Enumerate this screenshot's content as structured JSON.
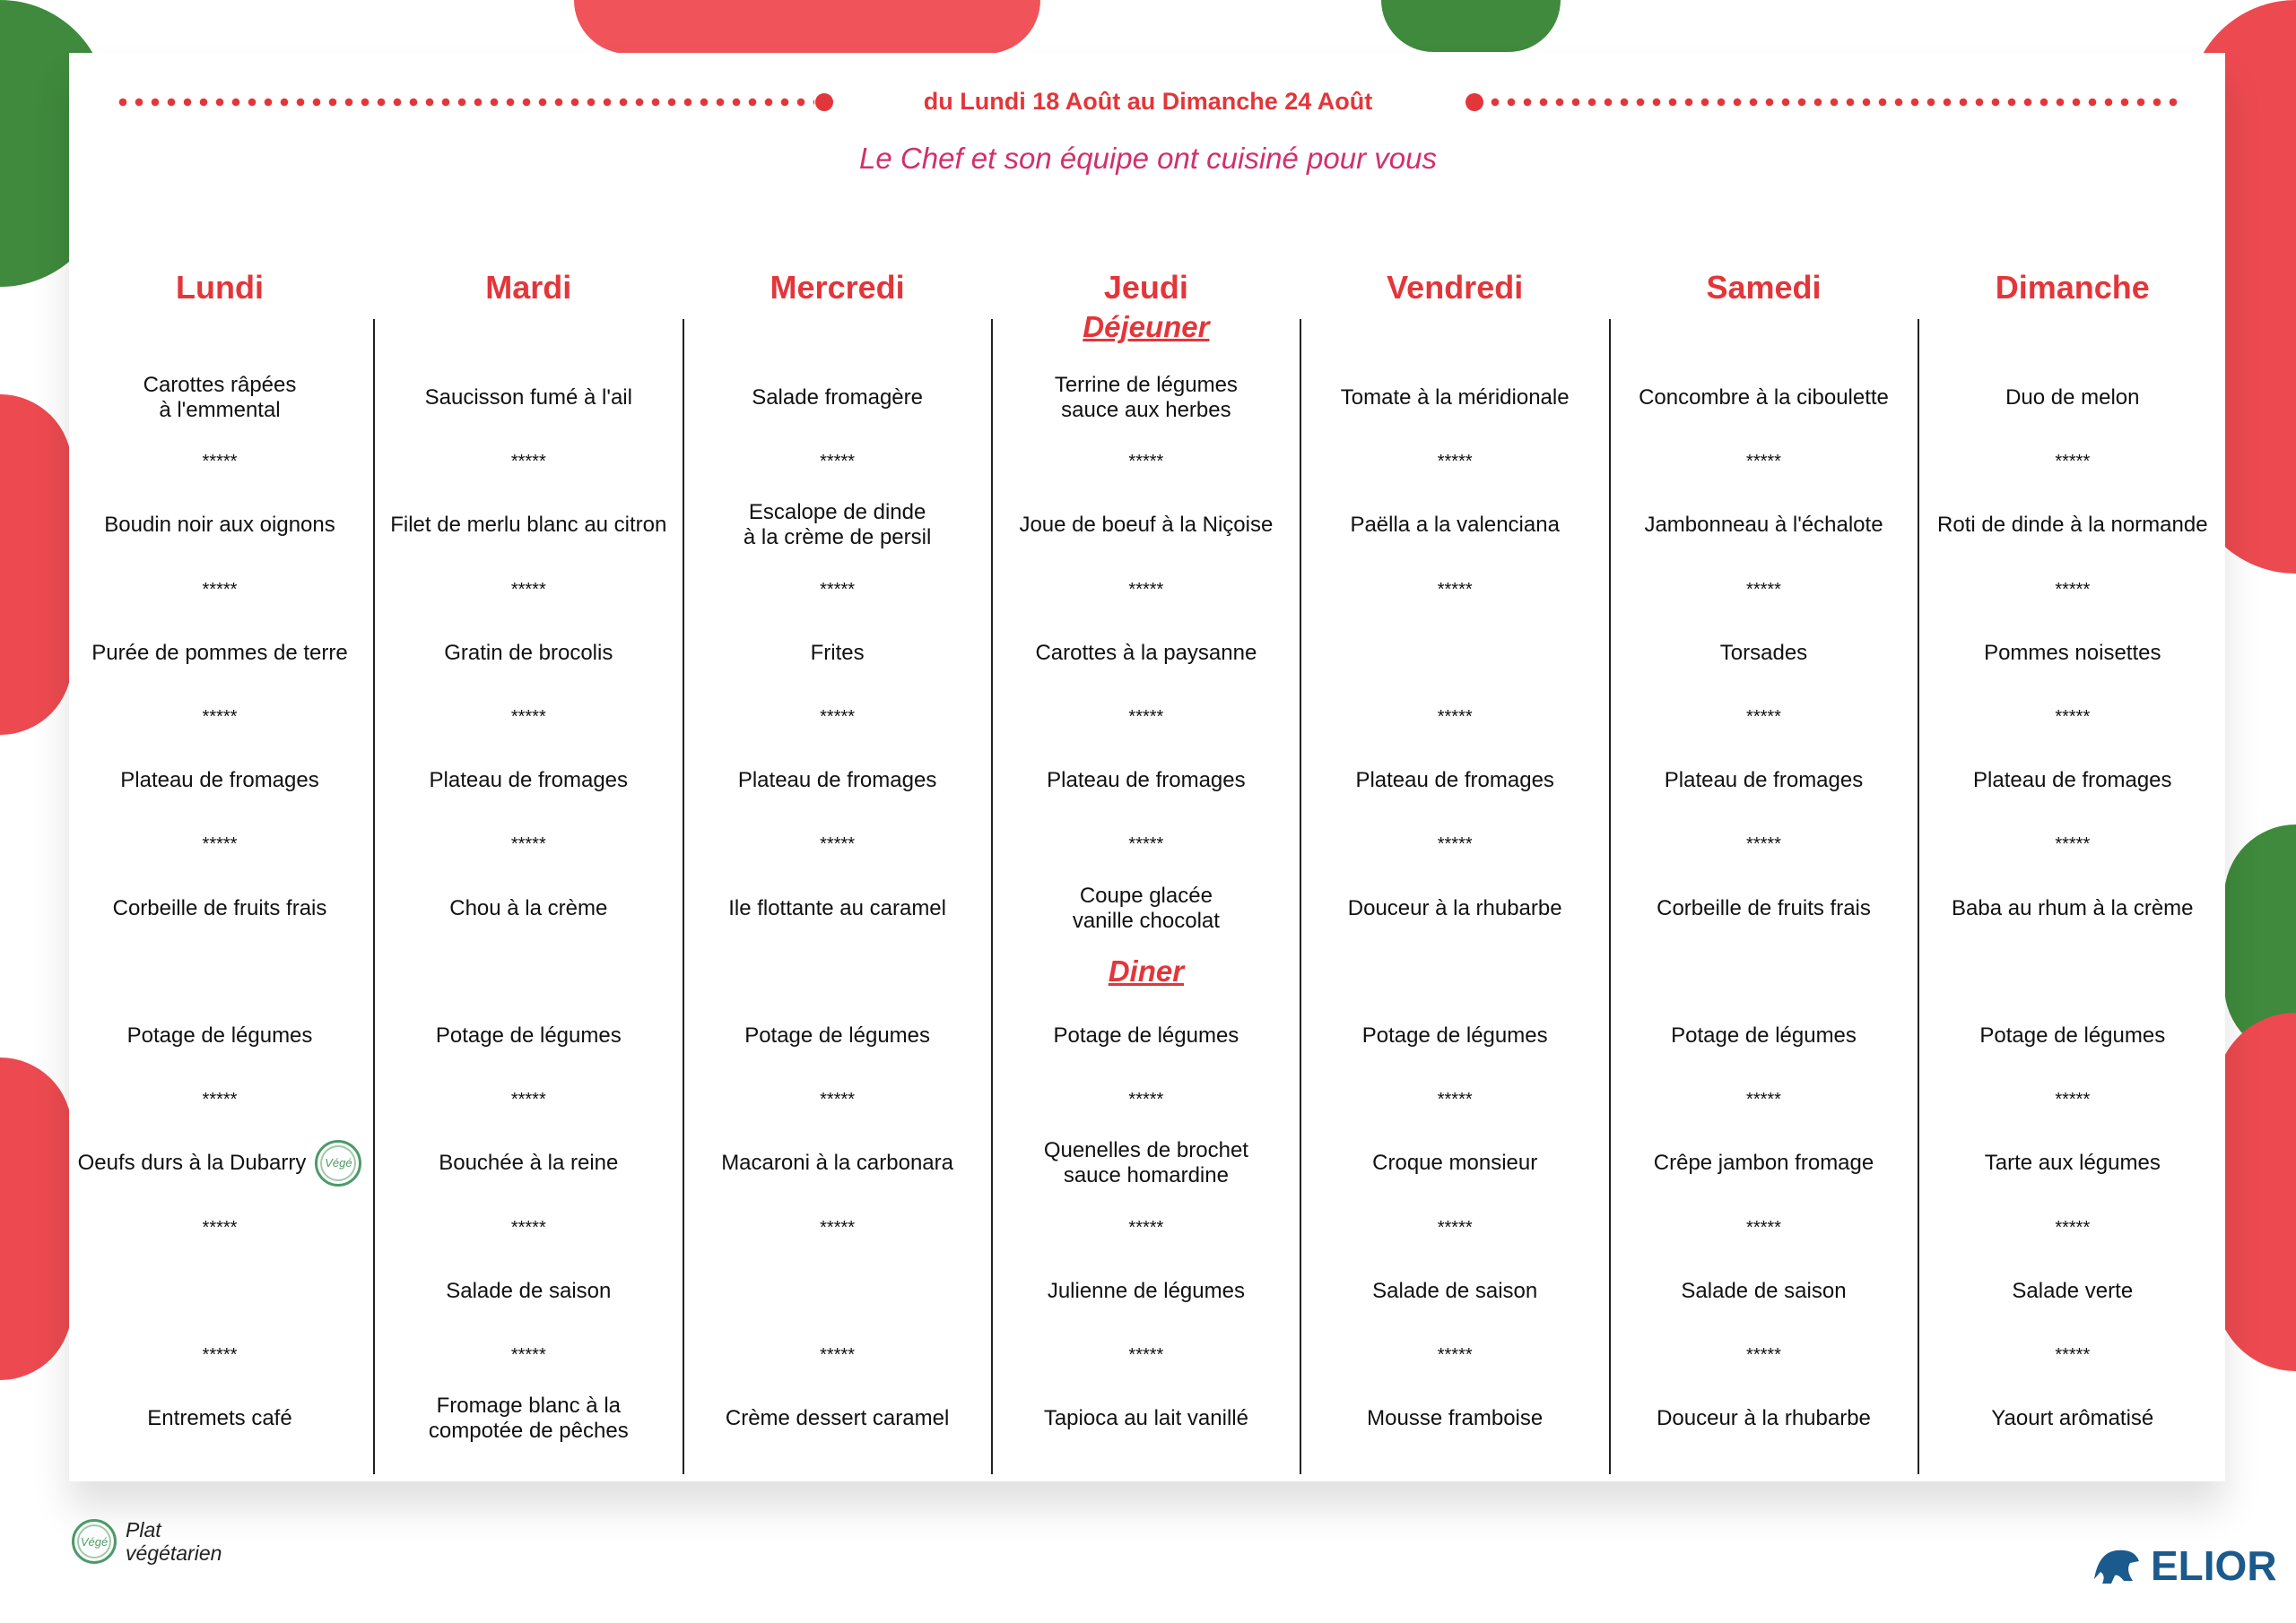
{
  "header": {
    "date_range": "du Lundi 18 Août au Dimanche 24 Août",
    "subtitle": "Le Chef et son équipe ont cuisiné pour vous"
  },
  "meals": {
    "lunch_label": "Déjeuner",
    "dinner_label": "Diner"
  },
  "separator": "*****",
  "days": [
    {
      "name": "Lundi",
      "lunch": [
        "Carottes râpées\nà l'emmental",
        "Boudin noir aux oignons",
        "Purée de pommes de terre",
        "Plateau de fromages",
        "Corbeille de fruits frais"
      ],
      "dinner": [
        "Potage de légumes",
        "Oeufs durs à la Dubarry",
        "",
        "Entremets café"
      ],
      "vege_dinner_index": 1
    },
    {
      "name": "Mardi",
      "lunch": [
        "Saucisson fumé à l'ail",
        "Filet de merlu blanc au citron",
        "Gratin de brocolis",
        "Plateau de fromages",
        "Chou à la crème"
      ],
      "dinner": [
        "Potage de légumes",
        "Bouchée à la reine",
        "Salade de saison",
        "Fromage blanc à la\ncompotée de pêches"
      ]
    },
    {
      "name": "Mercredi",
      "lunch": [
        "Salade fromagère",
        "Escalope de dinde\nà la crème de persil",
        "Frites",
        "Plateau de fromages",
        "Ile flottante au caramel"
      ],
      "dinner": [
        "Potage de légumes",
        "Macaroni à la carbonara",
        "",
        "Crème dessert caramel"
      ]
    },
    {
      "name": "Jeudi",
      "lunch": [
        "Terrine de légumes\nsauce aux herbes",
        "Joue de boeuf à la Niçoise",
        "Carottes à la paysanne",
        "Plateau de fromages",
        "Coupe glacée\nvanille chocolat"
      ],
      "dinner": [
        "Potage de légumes",
        "Quenelles de brochet\nsauce homardine",
        "Julienne de légumes",
        "Tapioca au lait vanillé"
      ]
    },
    {
      "name": "Vendredi",
      "lunch": [
        "Tomate à la méridionale",
        "Paëlla a la valenciana",
        "",
        "Plateau de fromages",
        "Douceur à la rhubarbe"
      ],
      "dinner": [
        "Potage de légumes",
        "Croque monsieur",
        "Salade de saison",
        "Mousse framboise"
      ]
    },
    {
      "name": "Samedi",
      "lunch": [
        "Concombre à la ciboulette",
        "Jambonneau à l'échalote",
        "Torsades",
        "Plateau de fromages",
        "Corbeille de fruits frais"
      ],
      "dinner": [
        "Potage de légumes",
        "Crêpe jambon fromage",
        "Salade de saison",
        "Douceur à la rhubarbe"
      ]
    },
    {
      "name": "Dimanche",
      "lunch": [
        "Duo de melon",
        "Roti de dinde à la normande",
        "Pommes noisettes",
        "Plateau de fromages",
        "Baba au rhum à la crème"
      ],
      "dinner": [
        "Potage de légumes",
        "Tarte aux légumes",
        "Salade verte",
        "Yaourt arômatisé"
      ]
    }
  ],
  "vege_badge": "Végé",
  "legend": {
    "text": "Plat\nvégétarien"
  },
  "brand": {
    "name": "ELIOR",
    "color": "#1b5a8c"
  },
  "colors": {
    "accent": "#e3363a",
    "subtitle": "#d1306b",
    "vege": "#4d9a6a"
  }
}
